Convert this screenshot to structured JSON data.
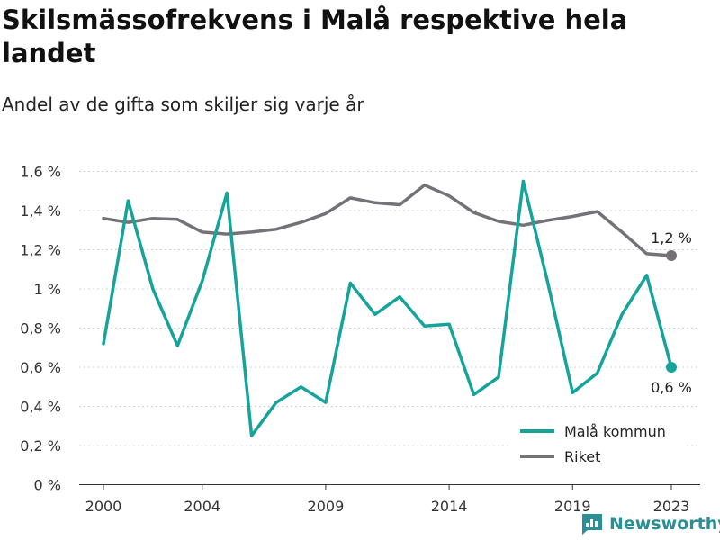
{
  "title": "Skilsmässofrekvens i Malå respektive hela landet",
  "subtitle": "Andel av de gifta som skiljer sig varje år",
  "brand": {
    "name": "Newsworthy",
    "icon": "newsworthy-logo-icon"
  },
  "colors": {
    "mala": "#16a39a",
    "riket": "#757277"
  },
  "chart_data": {
    "type": "line",
    "x": [
      2000,
      2001,
      2002,
      2003,
      2004,
      2005,
      2006,
      2007,
      2008,
      2009,
      2010,
      2011,
      2012,
      2013,
      2014,
      2015,
      2016,
      2017,
      2018,
      2019,
      2020,
      2021,
      2022,
      2023
    ],
    "series": [
      {
        "name": "Malå kommun",
        "values": [
          0.72,
          1.45,
          1.0,
          0.71,
          1.04,
          1.49,
          0.25,
          0.42,
          0.5,
          0.42,
          1.03,
          0.87,
          0.96,
          0.81,
          0.82,
          0.46,
          0.55,
          1.55,
          1.03,
          0.47,
          0.57,
          0.87,
          1.07,
          0.6
        ]
      },
      {
        "name": "Riket",
        "values": [
          1.36,
          1.34,
          1.36,
          1.355,
          1.29,
          1.28,
          1.29,
          1.305,
          1.34,
          1.385,
          1.465,
          1.44,
          1.43,
          1.53,
          1.475,
          1.39,
          1.345,
          1.325,
          1.35,
          1.37,
          1.395,
          1.29,
          1.18,
          1.17
        ]
      }
    ],
    "x_ticks": [
      "2000",
      "2004",
      "2009",
      "2014",
      "2019",
      "2023"
    ],
    "y_ticks": [
      "0 %",
      "0,2 %",
      "0,4 %",
      "0,6 %",
      "0,8 %",
      "1 %",
      "1,2 %",
      "1,4 %",
      "1,6 %"
    ],
    "ylim": [
      0,
      1.6
    ],
    "end_labels": [
      "1,2 %",
      "0,6 %"
    ],
    "legend_position": "bottom-right",
    "grid": "horizontal dashed"
  }
}
